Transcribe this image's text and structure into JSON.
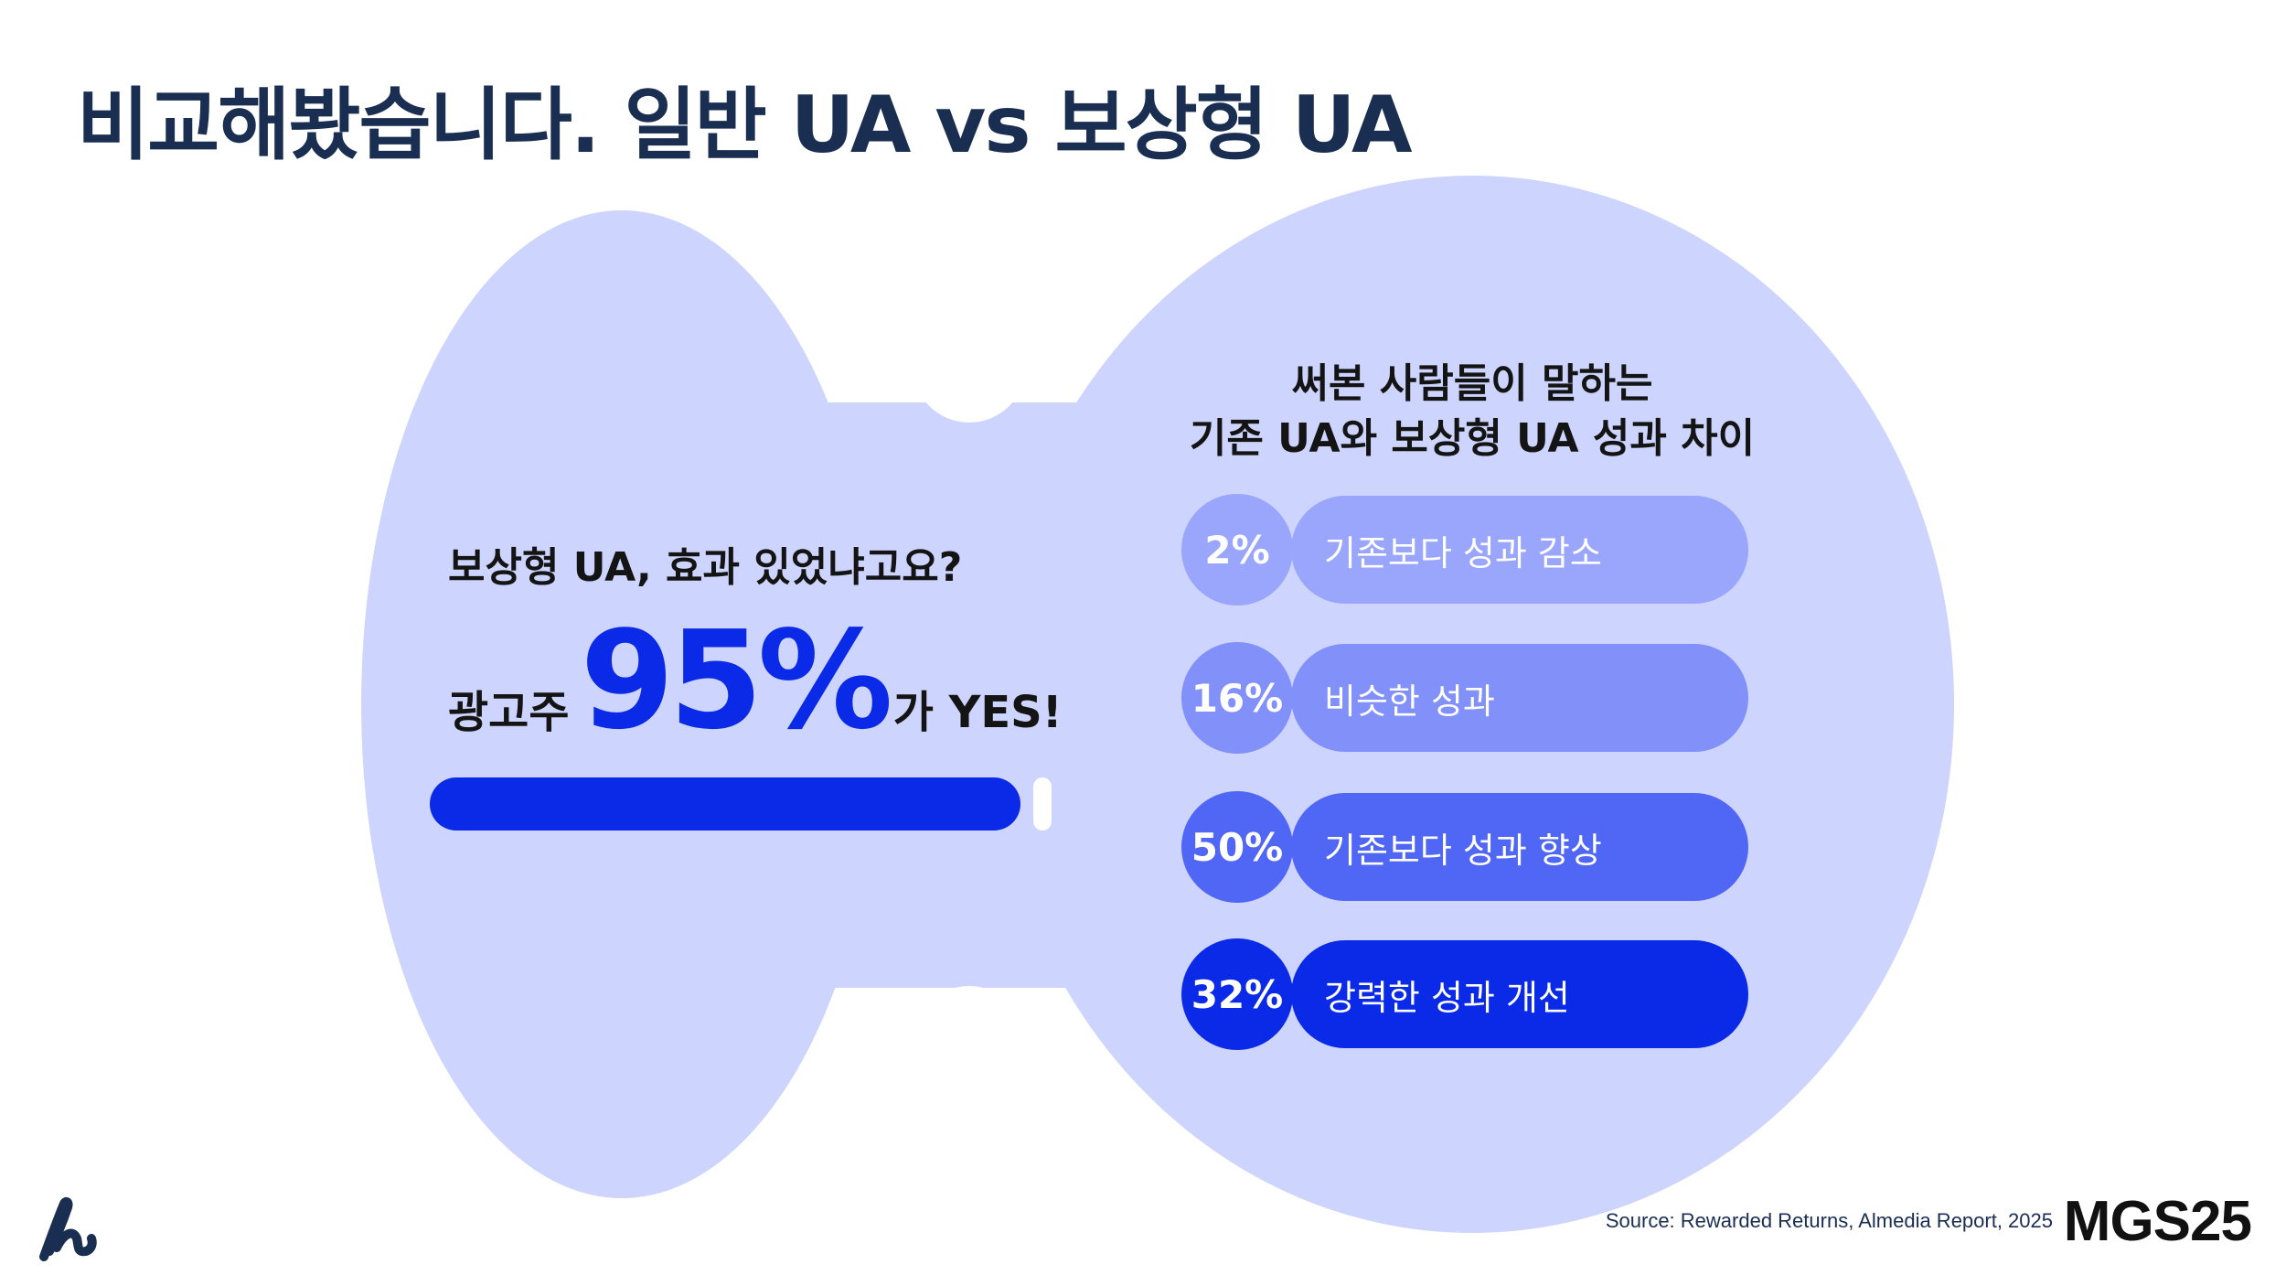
{
  "page": {
    "title": "비교해봤습니다. 일반 UA vs 보상형 UA"
  },
  "left_panel": {
    "question": "보상형 UA, 효과 있었냐고요?",
    "answer_prefix": "광고주",
    "answer_value": "95%",
    "answer_suffix": "가 YES!",
    "progress_fraction": 0.95
  },
  "chart_data": {
    "type": "bar",
    "title_line1": "써본 사람들이 말하는",
    "title_line2": "기존 UA와 보상형 UA 성과 차이",
    "categories": [
      "기존보다 성과 감소",
      "비슷한 성과",
      "기존보다 성과 향상",
      "강력한 성과 개선"
    ],
    "values": [
      2,
      16,
      50,
      32
    ],
    "value_labels": [
      "2%",
      "16%",
      "50%",
      "32%"
    ],
    "unit": "%"
  },
  "colors": {
    "blob": "#cdd4fd",
    "title": "#1a2e52",
    "accent": "#0a2ae8",
    "bar_1": "#99a6fb",
    "bar_2": "#8290f9",
    "bar_3": "#5066f5",
    "bar_4": "#0a2ae8"
  },
  "footer": {
    "source": "Source: Rewarded Returns, Almedia Report, 2025",
    "brand": "MGS25",
    "logo_icon": "almedia-logo-icon"
  }
}
